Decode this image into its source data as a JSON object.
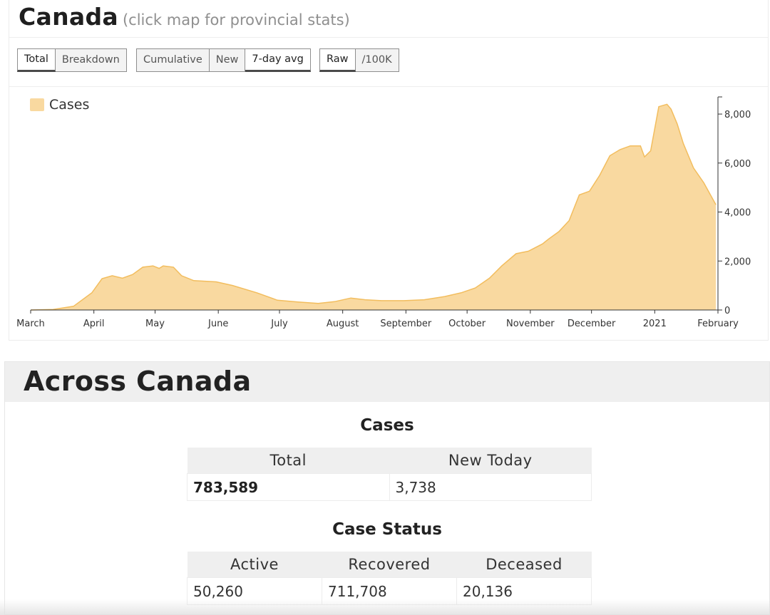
{
  "header": {
    "title": "Canada",
    "subtitle": "(click map for provincial stats)"
  },
  "controls": {
    "group1": [
      {
        "label": "Total",
        "active": true
      },
      {
        "label": "Breakdown",
        "active": false
      }
    ],
    "group2": [
      {
        "label": "Cumulative",
        "active": false
      },
      {
        "label": "New",
        "active": false
      },
      {
        "label": "7-day avg",
        "active": true
      }
    ],
    "group3": [
      {
        "label": "Raw",
        "active": true
      },
      {
        "label": "/100K",
        "active": false
      }
    ]
  },
  "colors": {
    "area_fill": "#f9d9a0",
    "area_stroke": "#f2bd5e",
    "axis": "#333333"
  },
  "chart_data": {
    "type": "area",
    "legend": {
      "label": "Cases",
      "position": "top-left"
    },
    "x_tick_labels": [
      "March",
      "April",
      "May",
      "June",
      "July",
      "August",
      "September",
      "October",
      "November",
      "December",
      "2021",
      "February"
    ],
    "x_tick_dates": [
      "2020-03-01",
      "2020-04-01",
      "2020-05-01",
      "2020-06-01",
      "2020-07-01",
      "2020-08-01",
      "2020-09-01",
      "2020-10-01",
      "2020-11-01",
      "2020-12-01",
      "2021-01-01",
      "2021-02-01"
    ],
    "ylim": [
      0,
      8700
    ],
    "y_ticks": [
      0,
      2000,
      4000,
      6000,
      8000
    ],
    "y_tick_labels": [
      "0",
      "2,000",
      "4,000",
      "6,000",
      "8,000"
    ],
    "y_axis_side": "right",
    "grid": false,
    "series": [
      {
        "name": "Cases",
        "x": [
          "2020-03-01",
          "2020-03-12",
          "2020-03-22",
          "2020-03-31",
          "2020-04-05",
          "2020-04-10",
          "2020-04-15",
          "2020-04-20",
          "2020-04-25",
          "2020-04-30",
          "2020-05-03",
          "2020-05-05",
          "2020-05-10",
          "2020-05-14",
          "2020-05-20",
          "2020-05-31",
          "2020-06-08",
          "2020-06-20",
          "2020-06-30",
          "2020-07-10",
          "2020-07-20",
          "2020-07-28",
          "2020-08-05",
          "2020-08-12",
          "2020-08-20",
          "2020-08-31",
          "2020-09-10",
          "2020-09-20",
          "2020-09-28",
          "2020-10-05",
          "2020-10-12",
          "2020-10-18",
          "2020-10-25",
          "2020-10-31",
          "2020-11-07",
          "2020-11-10",
          "2020-11-15",
          "2020-11-20",
          "2020-11-25",
          "2020-11-30",
          "2020-12-05",
          "2020-12-10",
          "2020-12-15",
          "2020-12-20",
          "2020-12-23",
          "2020-12-25",
          "2020-12-27",
          "2020-12-30",
          "2021-01-03",
          "2021-01-07",
          "2021-01-09",
          "2021-01-12",
          "2021-01-15",
          "2021-01-20",
          "2021-01-25",
          "2021-01-31"
        ],
        "y": [
          0,
          20,
          150,
          700,
          1280,
          1400,
          1300,
          1450,
          1750,
          1800,
          1700,
          1800,
          1750,
          1400,
          1200,
          1150,
          1000,
          700,
          400,
          330,
          270,
          340,
          490,
          420,
          380,
          380,
          420,
          550,
          700,
          900,
          1300,
          1800,
          2300,
          2400,
          2700,
          2900,
          3200,
          3650,
          4700,
          4850,
          5500,
          6300,
          6550,
          6700,
          6700,
          6700,
          6250,
          6500,
          8300,
          8400,
          8200,
          7600,
          6800,
          5800,
          5200,
          4300
        ]
      }
    ]
  },
  "across": {
    "title": "Across Canada",
    "cases": {
      "title": "Cases",
      "headers": [
        "Total",
        "New Today"
      ],
      "values": [
        "783,589",
        "3,738"
      ]
    },
    "status": {
      "title": "Case Status",
      "headers": [
        "Active",
        "Recovered",
        "Deceased"
      ],
      "values": [
        "50,260",
        "711,708",
        "20,136"
      ]
    }
  }
}
